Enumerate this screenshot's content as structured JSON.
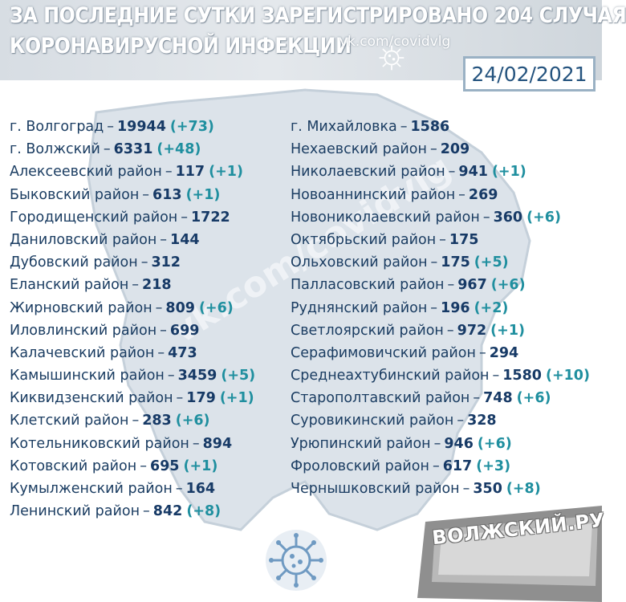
{
  "header": {
    "title_line1": "ЗА ПОСЛЕДНИЕ СУТКИ ЗАРЕГИСТРИРОВАНО 204 СЛУЧАЯ",
    "title_line2": "КОРОНАВИРУСНОЙ ИНФЕКЦИИ",
    "vk_link": "vk.com/covidvlg",
    "date": "24/02/2021"
  },
  "watermark": "vk.com/covidvlg",
  "logo": "ВОЛЖСКИЙ.РУ",
  "icons": {
    "header_virus": "virus-icon",
    "footer_virus": "virus-icon"
  },
  "colors": {
    "name_text": "#1b3d62",
    "count_text": "#173a66",
    "increase_text": "#1f8f9f",
    "map_fill": "#dce3ea"
  },
  "left_column": [
    {
      "name": "г. Волгоград",
      "count": "19944",
      "increase": "(+73)"
    },
    {
      "name": "г. Волжский",
      "count": "6331",
      "increase": "(+48)"
    },
    {
      "name": "Алексеевский район",
      "count": "117",
      "increase": "(+1)"
    },
    {
      "name": "Быковский район",
      "count": "613",
      "increase": "(+1)"
    },
    {
      "name": "Городищенский район",
      "count": "1722",
      "increase": ""
    },
    {
      "name": "Даниловский район",
      "count": "144",
      "increase": ""
    },
    {
      "name": "Дубовский район",
      "count": "312",
      "increase": ""
    },
    {
      "name": "Еланский район",
      "count": "218",
      "increase": ""
    },
    {
      "name": "Жирновский район",
      "count": "809",
      "increase": "(+6)"
    },
    {
      "name": "Иловлинский район",
      "count": "699",
      "increase": ""
    },
    {
      "name": "Калачевский район",
      "count": "473",
      "increase": ""
    },
    {
      "name": "Камышинский район",
      "count": "3459",
      "increase": "(+5)"
    },
    {
      "name": "Киквидзенский район",
      "count": "179",
      "increase": "(+1)"
    },
    {
      "name": "Клетский район",
      "count": "283",
      "increase": "(+6)"
    },
    {
      "name": "Котельниковский район",
      "count": "894",
      "increase": ""
    },
    {
      "name": "Котовский район",
      "count": "695",
      "increase": "(+1)"
    },
    {
      "name": "Кумылженский район",
      "count": "164",
      "increase": ""
    },
    {
      "name": "Ленинский район",
      "count": "842",
      "increase": "(+8)"
    }
  ],
  "right_column": [
    {
      "name": "г. Михайловка",
      "count": "1586",
      "increase": ""
    },
    {
      "name": "Нехаевский район",
      "count": "209",
      "increase": ""
    },
    {
      "name": "Николаевский район",
      "count": "941",
      "increase": "(+1)"
    },
    {
      "name": "Новоаннинский район",
      "count": "269",
      "increase": ""
    },
    {
      "name": "Новониколаевский район",
      "count": "360",
      "increase": "(+6)"
    },
    {
      "name": "Октябрьский район",
      "count": "175",
      "increase": ""
    },
    {
      "name": "Ольховский район",
      "count": "175",
      "increase": "(+5)"
    },
    {
      "name": "Палласовский район",
      "count": "967",
      "increase": "(+6)"
    },
    {
      "name": "Руднянский район",
      "count": "196",
      "increase": "(+2)"
    },
    {
      "name": "Светлоярский район",
      "count": "972",
      "increase": "(+1)"
    },
    {
      "name": "Серафимовичский район",
      "count": "294",
      "increase": ""
    },
    {
      "name": "Среднеахтубинский район",
      "count": "1580",
      "increase": "(+10)"
    },
    {
      "name": "Старополтавский район",
      "count": "748",
      "increase": "(+6)"
    },
    {
      "name": "Суровикинский район",
      "count": "328",
      "increase": ""
    },
    {
      "name": "Урюпинский район",
      "count": "946",
      "increase": "(+6)"
    },
    {
      "name": "Фроловский район",
      "count": "617",
      "increase": "(+3)"
    },
    {
      "name": "Чернышковский район",
      "count": "350",
      "increase": "(+8)"
    }
  ]
}
